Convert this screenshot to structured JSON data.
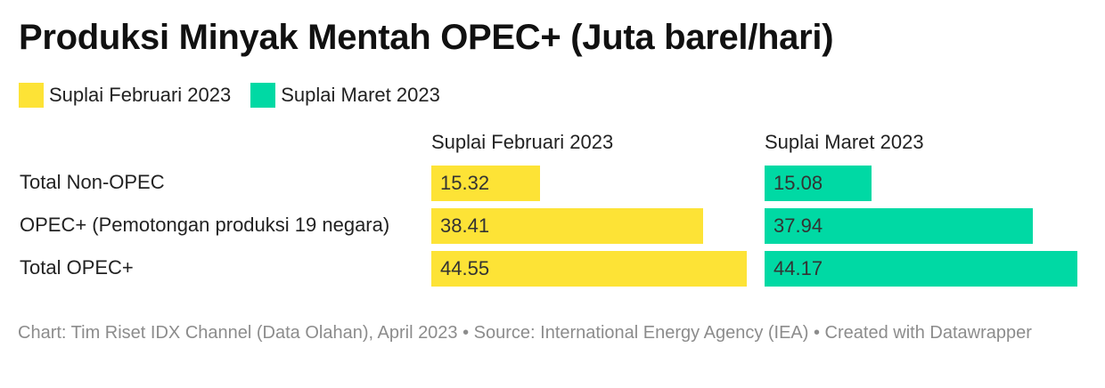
{
  "title": "Produksi Minyak Mentah OPEC+ (Juta barel/hari)",
  "footer": "Chart: Tim Riset IDX Channel (Data Olahan), April 2023 • Source: International Energy Agency (IEA) • Created with Datawrapper",
  "colors": {
    "feb": "#fde336",
    "mar": "#00d9a4"
  },
  "chart_data": {
    "type": "bar",
    "categories": [
      "Total Non-OPEC",
      "OPEC+ (Pemotongan produksi 19 negara)",
      "Total OPEC+"
    ],
    "series": [
      {
        "name": "Suplai Februari 2023",
        "values": [
          15.32,
          38.41,
          44.55
        ],
        "labels": [
          "15.32",
          "38.41",
          "44.55"
        ]
      },
      {
        "name": "Suplai Maret 2023",
        "values": [
          15.08,
          37.94,
          44.17
        ],
        "labels": [
          "15.08",
          "37.94",
          "44.17"
        ]
      }
    ],
    "xlim": [
      0,
      44.55
    ],
    "legend": "top-left"
  }
}
